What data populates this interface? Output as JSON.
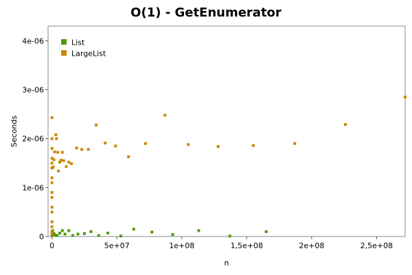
{
  "chart_data": {
    "type": "scatter",
    "title": "O(1) - GetEnumerator",
    "xlabel": "n",
    "ylabel": "Seconds",
    "xlim": [
      -3000000,
      272000000
    ],
    "ylim": [
      0,
      4.3e-06
    ],
    "x_ticks": [
      {
        "value": 0,
        "label": "0"
      },
      {
        "value": 50000000,
        "label": "5e+07"
      },
      {
        "value": 100000000,
        "label": "1e+08"
      },
      {
        "value": 150000000,
        "label": "1,5e+08"
      },
      {
        "value": 200000000,
        "label": "2e+08"
      },
      {
        "value": 250000000,
        "label": "2,5e+08"
      }
    ],
    "y_ticks": [
      {
        "value": 0,
        "label": "0"
      },
      {
        "value": 1e-06,
        "label": "1e-06"
      },
      {
        "value": 2e-06,
        "label": "2e-06"
      },
      {
        "value": 3e-06,
        "label": "3e-06"
      },
      {
        "value": 4e-06,
        "label": "4e-06"
      }
    ],
    "grid": false,
    "legend_position": "top-left",
    "series": [
      {
        "name": "List",
        "color": "#4e9a06",
        "points": [
          [
            0,
            3e-08
          ],
          [
            100000,
            8e-08
          ],
          [
            300000,
            5e-08
          ],
          [
            600000,
            1.2e-07
          ],
          [
            1000000,
            4e-08
          ],
          [
            1500000,
            6e-08
          ],
          [
            2500000,
            3e-08
          ],
          [
            4000000,
            2e-08
          ],
          [
            6000000,
            7e-08
          ],
          [
            8000000,
            1.2e-07
          ],
          [
            10000000,
            5e-08
          ],
          [
            13000000,
            1.2e-07
          ],
          [
            16000000,
            2e-08
          ],
          [
            20000000,
            5e-08
          ],
          [
            25000000,
            6e-08
          ],
          [
            30000000,
            1e-07
          ],
          [
            36000000,
            2e-08
          ],
          [
            43000000,
            7e-08
          ],
          [
            53000000,
            1e-08
          ],
          [
            63000000,
            1.5e-07
          ],
          [
            77000000,
            9e-08
          ],
          [
            93000000,
            4e-08
          ],
          [
            113000000,
            1.2e-07
          ],
          [
            137000000,
            1e-08
          ],
          [
            165000000,
            1e-07
          ]
        ]
      },
      {
        "name": "LargeList",
        "color": "#c88a06",
        "points": [
          [
            0,
            5e-08
          ],
          [
            0,
            1e-07
          ],
          [
            0,
            2e-07
          ],
          [
            0,
            3e-07
          ],
          [
            0,
            5e-07
          ],
          [
            0,
            6e-07
          ],
          [
            0,
            8e-07
          ],
          [
            0,
            9e-07
          ],
          [
            0,
            1.1e-06
          ],
          [
            0,
            1.2e-06
          ],
          [
            0,
            1.4e-06
          ],
          [
            0,
            1.5e-06
          ],
          [
            0,
            1.6e-06
          ],
          [
            0,
            1.8e-06
          ],
          [
            0,
            2e-06
          ],
          [
            0,
            2.43e-06
          ],
          [
            1000000,
            1.42e-06
          ],
          [
            1500000,
            1.57e-06
          ],
          [
            2000000,
            1.73e-06
          ],
          [
            3000000,
            2.08e-06
          ],
          [
            3500000,
            2e-06
          ],
          [
            4500000,
            1.72e-06
          ],
          [
            5000000,
            1.34e-06
          ],
          [
            6000000,
            1.52e-06
          ],
          [
            7000000,
            1.56e-06
          ],
          [
            8000000,
            1.72e-06
          ],
          [
            9000000,
            1.55e-06
          ],
          [
            11000000,
            1.43e-06
          ],
          [
            13000000,
            1.52e-06
          ],
          [
            15000000,
            1.49e-06
          ],
          [
            19000000,
            1.81e-06
          ],
          [
            23000000,
            1.78e-06
          ],
          [
            28000000,
            1.78e-06
          ],
          [
            34000000,
            2.28e-06
          ],
          [
            41000000,
            1.91e-06
          ],
          [
            49000000,
            1.85e-06
          ],
          [
            59000000,
            1.63e-06
          ],
          [
            72000000,
            1.9e-06
          ],
          [
            87000000,
            2.48e-06
          ],
          [
            105000000,
            1.88e-06
          ],
          [
            128000000,
            1.84e-06
          ],
          [
            155000000,
            1.86e-06
          ],
          [
            187000000,
            1.9e-06
          ],
          [
            226000000,
            2.29e-06
          ],
          [
            272000000,
            2.85e-06
          ]
        ]
      }
    ]
  }
}
